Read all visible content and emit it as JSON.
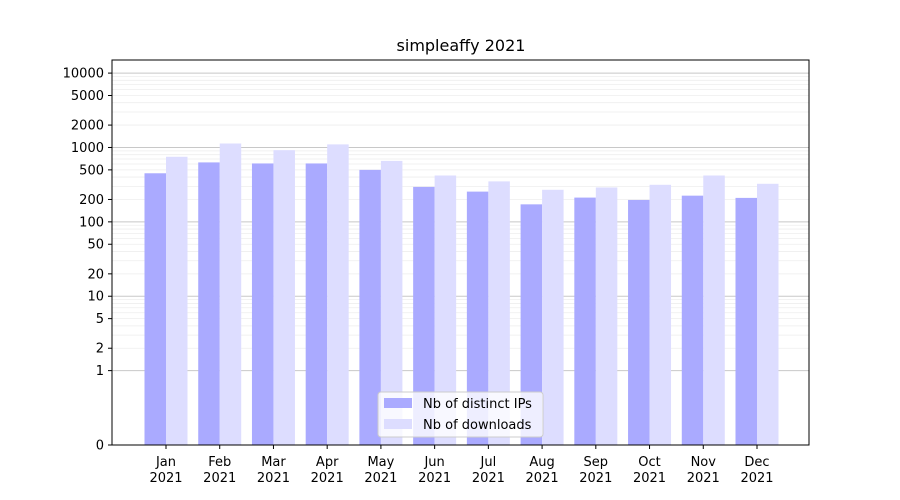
{
  "chart_data": {
    "type": "bar",
    "title": "simpleaffy 2021",
    "xlabel": "",
    "ylabel": "",
    "yscale": "symlog",
    "ylim": [
      0,
      15000
    ],
    "grid": "y-major-and-minor",
    "legend_position": "bottom-center",
    "categories": [
      "Jan\n2021",
      "Feb\n2021",
      "Mar\n2021",
      "Apr\n2021",
      "May\n2021",
      "Jun\n2021",
      "Jul\n2021",
      "Aug\n2021",
      "Sep\n2021",
      "Oct\n2021",
      "Nov\n2021",
      "Dec\n2021"
    ],
    "yticks": [
      0,
      1,
      2,
      5,
      10,
      20,
      50,
      100,
      200,
      500,
      1000,
      2000,
      5000,
      10000
    ],
    "series": [
      {
        "name": "Nb of distinct IPs",
        "color": "#aaaaff",
        "values": [
          450,
          630,
          610,
          610,
          500,
          295,
          255,
          172,
          212,
          197,
          225,
          210
        ]
      },
      {
        "name": "Nb of downloads",
        "color": "#ddddff",
        "values": [
          750,
          1130,
          920,
          1100,
          660,
          420,
          350,
          270,
          290,
          315,
          420,
          325
        ]
      }
    ]
  }
}
